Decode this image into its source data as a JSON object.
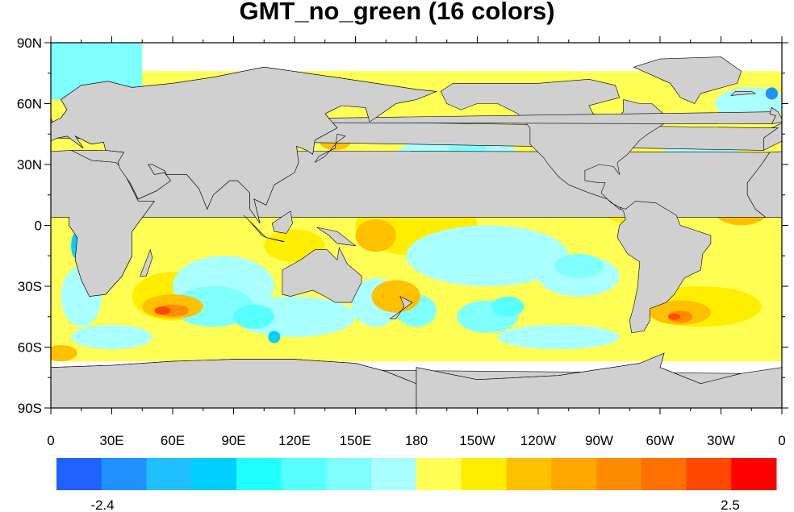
{
  "title": "GMT_no_green (16 colors)",
  "lat_labels": [
    "90N",
    "60N",
    "30N",
    "0",
    "30S",
    "60S",
    "90S"
  ],
  "lat_values": [
    90,
    60,
    30,
    0,
    -30,
    -60,
    -90
  ],
  "lon_labels": [
    "0",
    "30E",
    "60E",
    "90E",
    "120E",
    "150E",
    "180",
    "150W",
    "120W",
    "90W",
    "60W",
    "30W",
    "0"
  ],
  "lon_values": [
    0,
    30,
    60,
    90,
    120,
    150,
    180,
    210,
    240,
    270,
    300,
    330,
    360
  ],
  "colorbar": {
    "colors": [
      "#2060ff",
      "#2090ff",
      "#20c0ff",
      "#00d0ff",
      "#20ffff",
      "#58ffff",
      "#80ffff",
      "#aaffff",
      "#ffff55",
      "#ffee00",
      "#ffc000",
      "#ffa800",
      "#ff8c00",
      "#ff7000",
      "#ff4800",
      "#ff0000"
    ],
    "min_label": "-2.4",
    "max_label": "2.5"
  },
  "colors": {
    "land": "#d0d0d0",
    "missing": "#ffffff"
  }
}
